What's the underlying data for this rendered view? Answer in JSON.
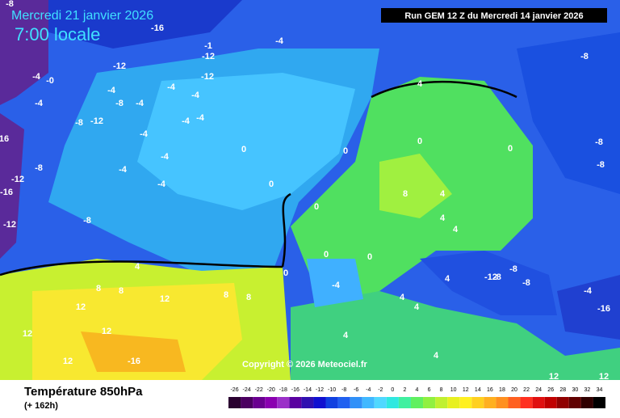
{
  "header": {
    "date": "Mercredi 21 janvier 2026",
    "time": "7:00 locale",
    "run": "Run GEM 12 Z du Mercredi 14 janvier 2026"
  },
  "copyright": "Copyright © 2026 Meteociel.fr",
  "footer": {
    "title": "Température 850hPa",
    "lead": "(+ 162h)"
  },
  "legend": {
    "labels": [
      "-26",
      "-24",
      "-22",
      "-20",
      "-18",
      "-16",
      "-14",
      "-12",
      "-10",
      "-8",
      "-6",
      "-4",
      "-2",
      "0",
      "2",
      "4",
      "6",
      "8",
      "10",
      "12",
      "14",
      "16",
      "18",
      "20",
      "22",
      "24",
      "26",
      "28",
      "30",
      "32",
      "34"
    ],
    "colors": [
      "#2a0030",
      "#4b0060",
      "#6a0090",
      "#8a00b0",
      "#9b30c8",
      "#5a00a0",
      "#3010b0",
      "#1010d0",
      "#1040e0",
      "#2060f0",
      "#3090f8",
      "#40b8ff",
      "#50d8ff",
      "#30e8e0",
      "#40f0a0",
      "#60f060",
      "#90f040",
      "#c0f030",
      "#e8f020",
      "#fff020",
      "#ffd020",
      "#ffb020",
      "#ff9020",
      "#ff6020",
      "#ff3020",
      "#e01010",
      "#c00000",
      "#900000",
      "#600000",
      "#300000",
      "#000000"
    ]
  },
  "map": {
    "labels": [
      "-8",
      "-16",
      "-12",
      "-1",
      "-4",
      "-12",
      "-12",
      "-4",
      "-0",
      "-4",
      "-8",
      "-4",
      "-12",
      "-8",
      "-4",
      "-4",
      "-4",
      "0",
      "-4",
      "-4",
      "-4",
      "0",
      "-4",
      "16",
      "-8",
      "-12",
      "-16",
      "-8",
      "-4",
      "-4",
      "0",
      "-12",
      "0",
      "4",
      "4",
      "0",
      "0",
      "8",
      "4",
      "4",
      "4",
      "0",
      "-8",
      "-8",
      "-8",
      "4",
      "8",
      "8",
      "12",
      "12",
      "12",
      "12",
      "-16",
      "12",
      "0",
      "0",
      "-4",
      "-8",
      "-8",
      "-8",
      "-12",
      "-16",
      "-4",
      "4",
      "4",
      "4",
      "4",
      "12",
      "12",
      "8",
      "8"
    ]
  }
}
